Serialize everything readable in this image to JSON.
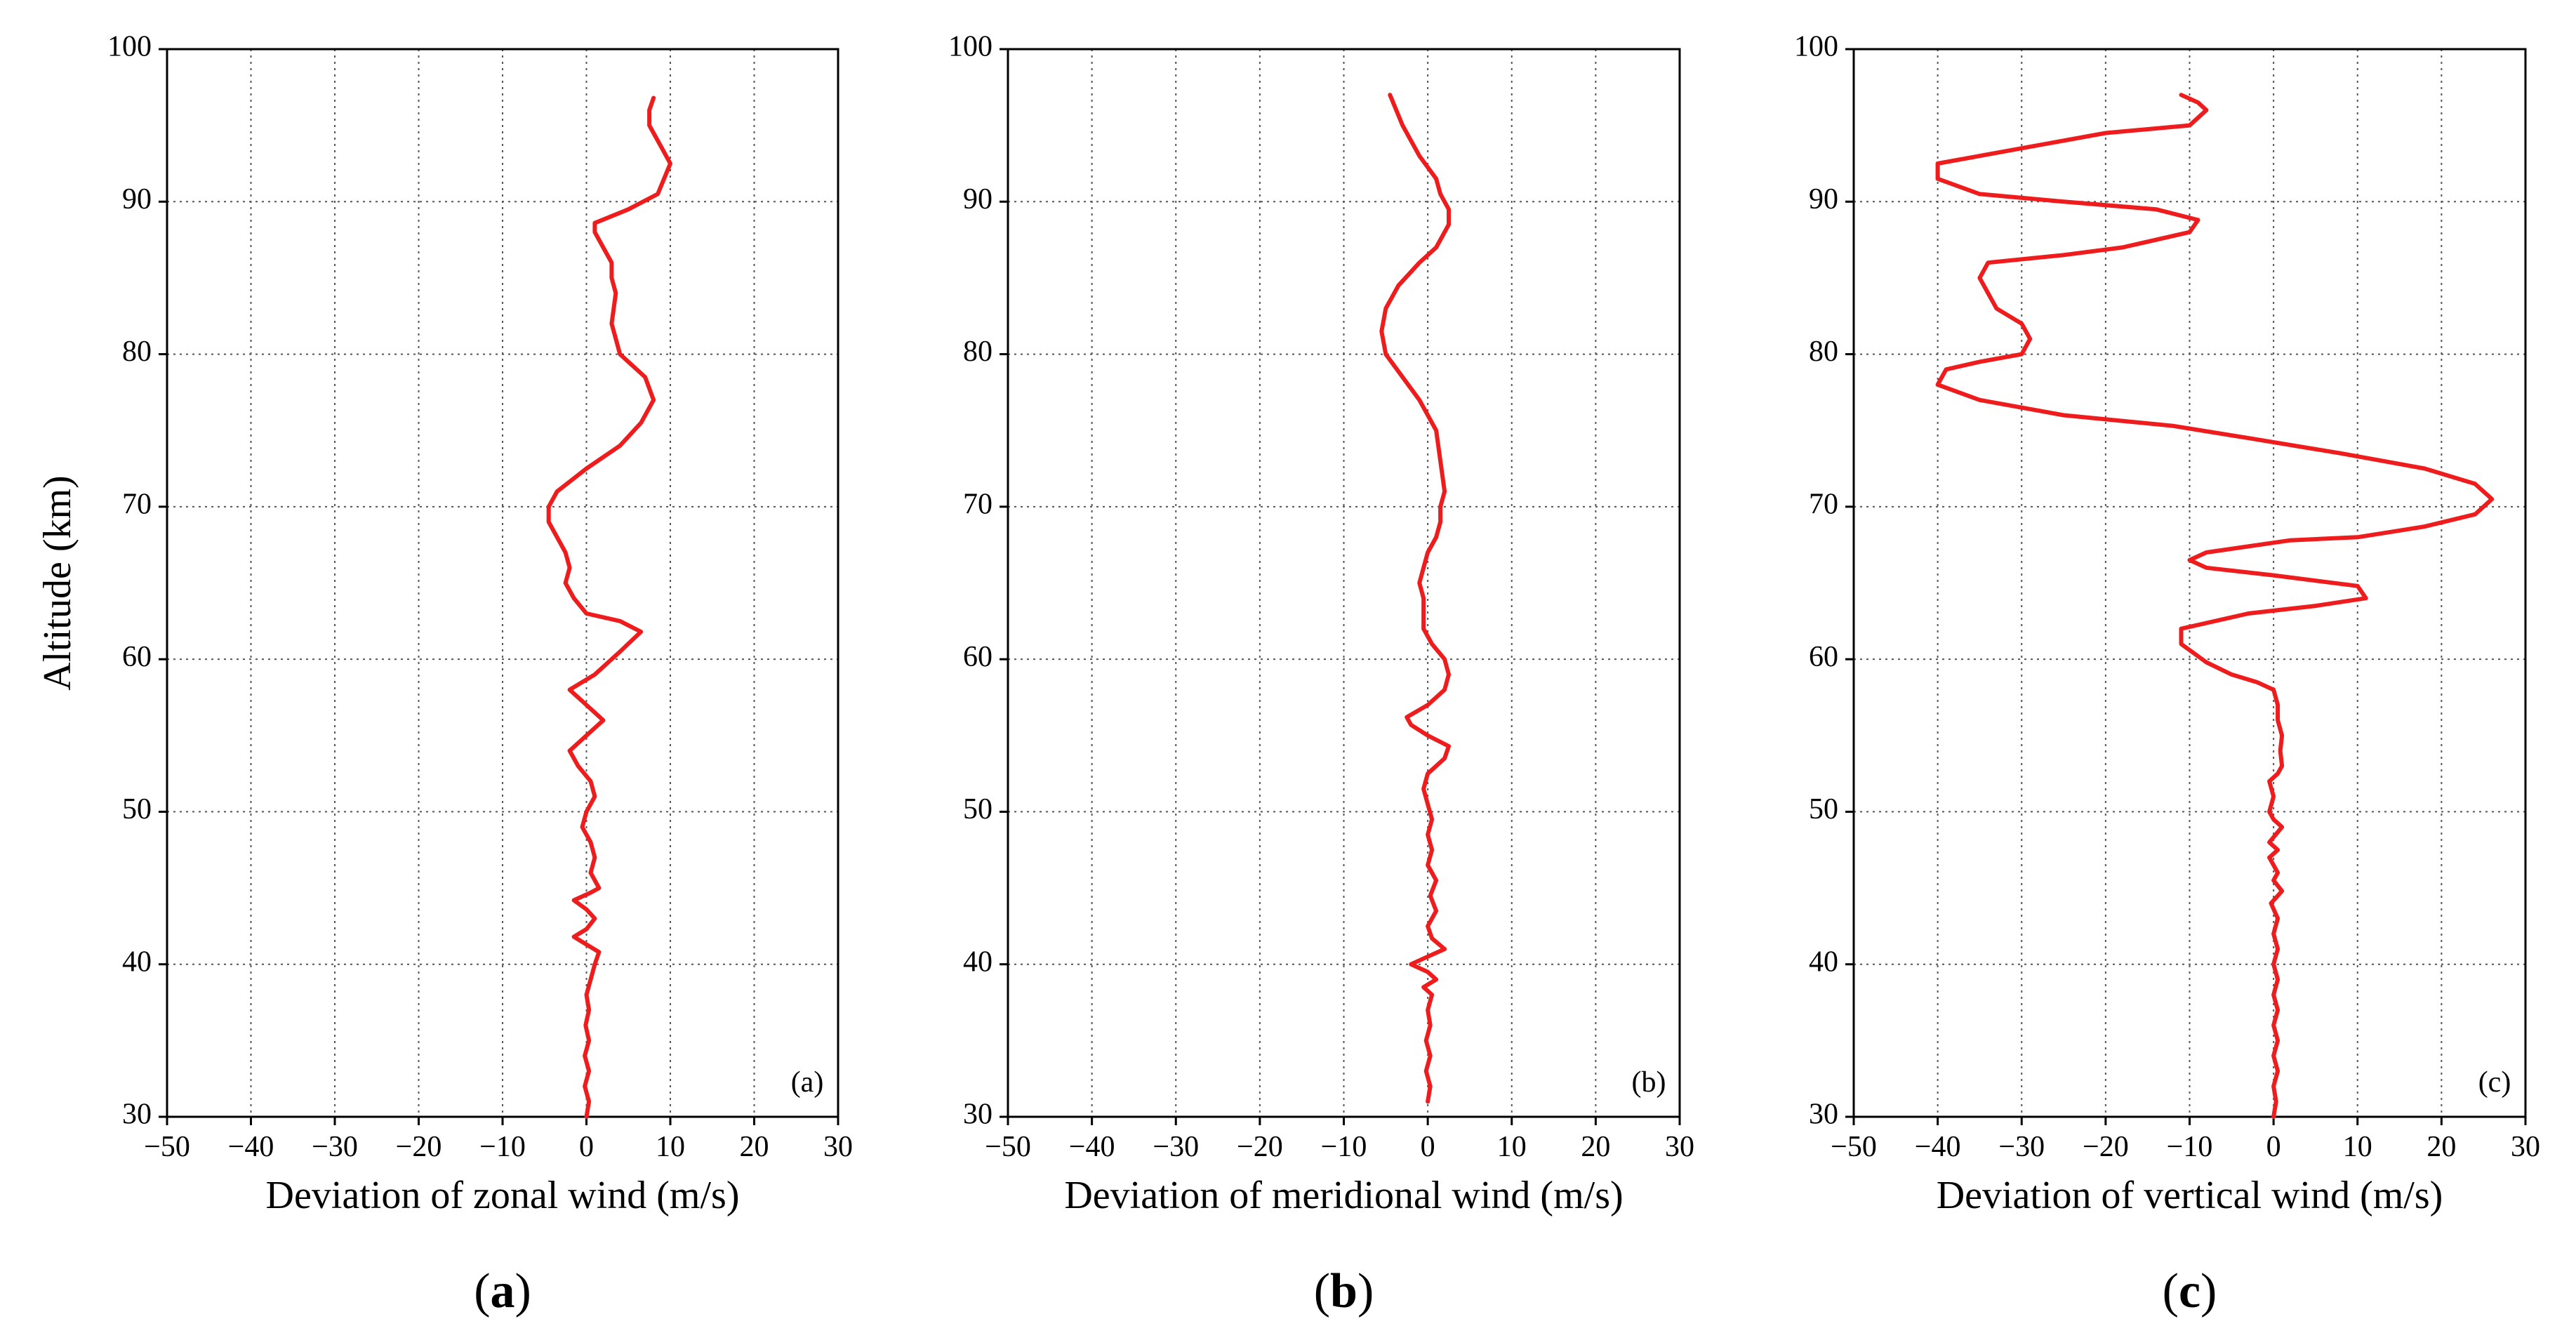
{
  "colors": {
    "series": "#ee1c1c",
    "grid": "#555555",
    "axis": "#000000"
  },
  "chart_data": [
    {
      "type": "line",
      "panel_tag": "(a)",
      "caption_letter": "a",
      "xlabel": "Deviation of zonal wind (m/s)",
      "ylabel": "Altitude (km)",
      "xlim": [
        -50,
        30
      ],
      "ylim": [
        30,
        100
      ],
      "xticks": [
        -50,
        -40,
        -30,
        -20,
        -10,
        0,
        10,
        20,
        30
      ],
      "yticks": [
        30,
        40,
        50,
        60,
        70,
        80,
        90,
        100
      ],
      "xtick_labels": [
        "−50",
        "−40",
        "−30",
        "−20",
        "−10",
        "0",
        "10",
        "20",
        "30"
      ],
      "ytick_labels": [
        "30",
        "40",
        "50",
        "60",
        "70",
        "80",
        "90",
        "100"
      ],
      "grid": true,
      "series": [
        {
          "name": "zonal",
          "points": [
            [
              0,
              30
            ],
            [
              0.3,
              31
            ],
            [
              -0.2,
              32
            ],
            [
              0.3,
              33
            ],
            [
              -0.2,
              34
            ],
            [
              0.3,
              35
            ],
            [
              -0.1,
              36
            ],
            [
              0.3,
              37
            ],
            [
              0,
              38
            ],
            [
              0.5,
              39
            ],
            [
              1,
              40
            ],
            [
              1.5,
              40.8
            ],
            [
              0,
              41.3
            ],
            [
              -1.5,
              41.8
            ],
            [
              0,
              42.3
            ],
            [
              1,
              43
            ],
            [
              0,
              43.6
            ],
            [
              -1.5,
              44.2
            ],
            [
              0.5,
              44.7
            ],
            [
              1.5,
              45
            ],
            [
              0.5,
              46
            ],
            [
              1,
              47
            ],
            [
              0.5,
              48
            ],
            [
              -0.5,
              49
            ],
            [
              0,
              50
            ],
            [
              1,
              51
            ],
            [
              0.5,
              52
            ],
            [
              -1,
              53
            ],
            [
              -2,
              54
            ],
            [
              0,
              55
            ],
            [
              2,
              56
            ],
            [
              0,
              57
            ],
            [
              -2,
              58
            ],
            [
              1,
              59
            ],
            [
              4,
              60.5
            ],
            [
              6.5,
              61.8
            ],
            [
              4,
              62.5
            ],
            [
              0,
              63
            ],
            [
              -1.5,
              64
            ],
            [
              -2.5,
              65
            ],
            [
              -2,
              66
            ],
            [
              -2.5,
              67
            ],
            [
              -4.5,
              69
            ],
            [
              -4.5,
              70
            ],
            [
              -3.5,
              71
            ],
            [
              0,
              72.5
            ],
            [
              4,
              74
            ],
            [
              6.5,
              75.5
            ],
            [
              8,
              77
            ],
            [
              7,
              78.5
            ],
            [
              4,
              80
            ],
            [
              3,
              82
            ],
            [
              3.5,
              84
            ],
            [
              3,
              85
            ],
            [
              3,
              86
            ],
            [
              2,
              87
            ],
            [
              1,
              88
            ],
            [
              1,
              88.6
            ],
            [
              5,
              89.5
            ],
            [
              8.5,
              90.5
            ],
            [
              10,
              92.5
            ],
            [
              9,
              93.5
            ],
            [
              8,
              94.5
            ],
            [
              7.5,
              95
            ],
            [
              7.5,
              96
            ],
            [
              8,
              96.8
            ]
          ]
        }
      ]
    },
    {
      "type": "line",
      "panel_tag": "(b)",
      "caption_letter": "b",
      "xlabel": "Deviation of meridional wind (m/s)",
      "ylabel": "",
      "xlim": [
        -50,
        30
      ],
      "ylim": [
        30,
        100
      ],
      "xticks": [
        -50,
        -40,
        -30,
        -20,
        -10,
        0,
        10,
        20,
        30
      ],
      "yticks": [
        30,
        40,
        50,
        60,
        70,
        80,
        90,
        100
      ],
      "xtick_labels": [
        "−50",
        "−40",
        "−30",
        "−20",
        "−10",
        "0",
        "10",
        "20",
        "30"
      ],
      "ytick_labels": [
        "30",
        "40",
        "50",
        "60",
        "70",
        "80",
        "90",
        "100"
      ],
      "grid": true,
      "series": [
        {
          "name": "meridional",
          "points": [
            [
              0,
              31
            ],
            [
              0.3,
              32
            ],
            [
              -0.2,
              33
            ],
            [
              0.3,
              34
            ],
            [
              -0.2,
              35
            ],
            [
              0.3,
              36
            ],
            [
              0,
              37
            ],
            [
              0.5,
              38
            ],
            [
              -0.5,
              38.5
            ],
            [
              1,
              39
            ],
            [
              0,
              39.5
            ],
            [
              -2,
              40
            ],
            [
              0,
              40.5
            ],
            [
              2,
              41
            ],
            [
              0.5,
              41.7
            ],
            [
              0,
              42.5
            ],
            [
              1,
              43.5
            ],
            [
              0.3,
              44.5
            ],
            [
              1,
              45.5
            ],
            [
              0,
              46.5
            ],
            [
              0.5,
              47.5
            ],
            [
              0,
              48.5
            ],
            [
              0.5,
              49.5
            ],
            [
              0,
              50.5
            ],
            [
              -0.5,
              51.5
            ],
            [
              0,
              52.5
            ],
            [
              2,
              53.5
            ],
            [
              2.5,
              54.3
            ],
            [
              0,
              55
            ],
            [
              -2,
              55.7
            ],
            [
              -2.5,
              56.2
            ],
            [
              0,
              57
            ],
            [
              2,
              58
            ],
            [
              2.5,
              59
            ],
            [
              2,
              60
            ],
            [
              0.5,
              61
            ],
            [
              -0.5,
              62
            ],
            [
              -0.5,
              63
            ],
            [
              -0.5,
              64
            ],
            [
              -1,
              65
            ],
            [
              -0.5,
              66
            ],
            [
              0,
              67
            ],
            [
              1,
              68
            ],
            [
              1.5,
              69
            ],
            [
              1.5,
              70
            ],
            [
              2,
              71
            ],
            [
              1.5,
              73
            ],
            [
              1,
              75
            ],
            [
              -1,
              77
            ],
            [
              -3,
              78.5
            ],
            [
              -5,
              80
            ],
            [
              -5.5,
              81.5
            ],
            [
              -5,
              83
            ],
            [
              -3.5,
              84.5
            ],
            [
              -1,
              86
            ],
            [
              1,
              87
            ],
            [
              2.5,
              88.5
            ],
            [
              2.5,
              89.5
            ],
            [
              1.5,
              90.5
            ],
            [
              1,
              91.5
            ],
            [
              -1,
              93
            ],
            [
              -3,
              95
            ],
            [
              -4.5,
              97
            ]
          ]
        }
      ]
    },
    {
      "type": "line",
      "panel_tag": "(c)",
      "caption_letter": "c",
      "xlabel": "Deviation of vertical wind (m/s)",
      "ylabel": "",
      "xlim": [
        -50,
        30
      ],
      "ylim": [
        30,
        100
      ],
      "xticks": [
        -50,
        -40,
        -30,
        -20,
        -10,
        0,
        10,
        20,
        30
      ],
      "yticks": [
        30,
        40,
        50,
        60,
        70,
        80,
        90,
        100
      ],
      "xtick_labels": [
        "−50",
        "−40",
        "−30",
        "−20",
        "−10",
        "0",
        "10",
        "20",
        "30"
      ],
      "ytick_labels": [
        "30",
        "40",
        "50",
        "60",
        "70",
        "80",
        "90",
        "100"
      ],
      "grid": true,
      "series": [
        {
          "name": "vertical",
          "points": [
            [
              0,
              30
            ],
            [
              0.3,
              31
            ],
            [
              0,
              32
            ],
            [
              0.5,
              33
            ],
            [
              0,
              34
            ],
            [
              0.5,
              35
            ],
            [
              0,
              36
            ],
            [
              0.5,
              37
            ],
            [
              0,
              38
            ],
            [
              0.5,
              39
            ],
            [
              0,
              40
            ],
            [
              0.5,
              41
            ],
            [
              0,
              42
            ],
            [
              0.5,
              43
            ],
            [
              -0.3,
              44
            ],
            [
              1,
              44.8
            ],
            [
              0,
              45.5
            ],
            [
              0.5,
              46
            ],
            [
              -0.5,
              47
            ],
            [
              0.5,
              47.5
            ],
            [
              -0.5,
              48
            ],
            [
              1,
              49
            ],
            [
              0,
              49.5
            ],
            [
              -0.5,
              50
            ],
            [
              0,
              51
            ],
            [
              -0.5,
              52
            ],
            [
              0.5,
              52.5
            ],
            [
              1,
              53
            ],
            [
              0.8,
              54
            ],
            [
              1,
              55
            ],
            [
              0.5,
              56
            ],
            [
              0.5,
              57
            ],
            [
              0,
              58
            ],
            [
              -2,
              58.5
            ],
            [
              -5,
              59
            ],
            [
              -8,
              59.8
            ],
            [
              -11,
              61
            ],
            [
              -11,
              62
            ],
            [
              -3,
              63
            ],
            [
              5,
              63.5
            ],
            [
              11,
              64
            ],
            [
              10,
              64.8
            ],
            [
              0,
              65.5
            ],
            [
              -8,
              66
            ],
            [
              -10,
              66.5
            ],
            [
              -8,
              67
            ],
            [
              2,
              67.8
            ],
            [
              10,
              68
            ],
            [
              18,
              68.7
            ],
            [
              24,
              69.5
            ],
            [
              25,
              70
            ],
            [
              26,
              70.5
            ],
            [
              24,
              71.5
            ],
            [
              18,
              72.5
            ],
            [
              8,
              73.5
            ],
            [
              -3,
              74.5
            ],
            [
              -12,
              75.3
            ],
            [
              -25,
              76
            ],
            [
              -35,
              77
            ],
            [
              -40,
              78
            ],
            [
              -39,
              79
            ],
            [
              -35,
              79.5
            ],
            [
              -30,
              80
            ],
            [
              -29,
              81
            ],
            [
              -30,
              82
            ],
            [
              -33,
              83
            ],
            [
              -34,
              84
            ],
            [
              -35,
              85
            ],
            [
              -34,
              86
            ],
            [
              -25,
              86.5
            ],
            [
              -18,
              87
            ],
            [
              -10,
              88
            ],
            [
              -9,
              88.8
            ],
            [
              -14,
              89.5
            ],
            [
              -25,
              90
            ],
            [
              -35,
              90.5
            ],
            [
              -40,
              91.5
            ],
            [
              -40,
              92.5
            ],
            [
              -30,
              93.5
            ],
            [
              -20,
              94.5
            ],
            [
              -10,
              95
            ],
            [
              -8,
              96
            ],
            [
              -9,
              96.5
            ],
            [
              -11,
              97
            ]
          ]
        }
      ]
    }
  ]
}
